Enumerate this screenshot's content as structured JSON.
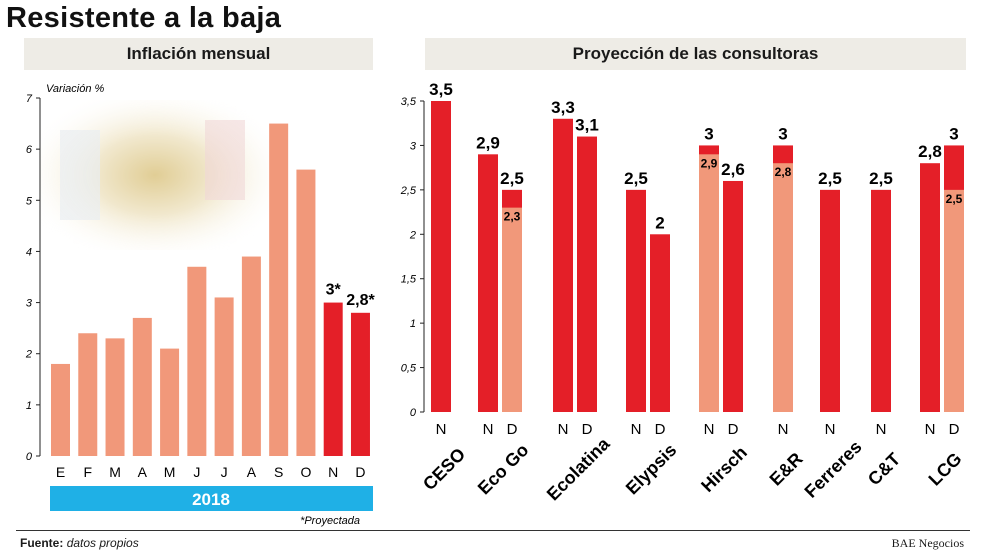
{
  "title": "Resistente a la baja",
  "source_label": "Fuente:",
  "source_text": "datos propios",
  "brand": "BAE Negocios",
  "colors": {
    "actual": "#f1987a",
    "projected": "#e41f28",
    "year_band": "#1fb0e6",
    "panel_head": "#eeece6"
  },
  "chart_data": [
    {
      "type": "bar",
      "title": "Inflación mensual",
      "ylabel": "Variación %",
      "ylim": [
        0,
        7
      ],
      "yticks": [
        "0",
        "1",
        "2",
        "3",
        "4",
        "5",
        "6",
        "7"
      ],
      "categories": [
        "E",
        "F",
        "M",
        "A",
        "M",
        "J",
        "J",
        "A",
        "S",
        "O",
        "N",
        "D"
      ],
      "values": [
        1.8,
        2.4,
        2.3,
        2.7,
        2.1,
        3.7,
        3.1,
        3.9,
        6.5,
        5.6,
        3.0,
        2.8
      ],
      "projected": [
        false,
        false,
        false,
        false,
        false,
        false,
        false,
        false,
        false,
        false,
        true,
        true
      ],
      "data_labels": [
        "",
        "",
        "",
        "",
        "",
        "",
        "",
        "",
        "",
        "",
        "3*",
        "2,8*"
      ],
      "year": "2018",
      "note": "*Proyectada",
      "grid": false
    },
    {
      "type": "bar",
      "title": "Proyección de las consultoras",
      "ylim": [
        0,
        3.5
      ],
      "yticks": [
        "0",
        "0,5",
        "1",
        "1,5",
        "2",
        "2,5",
        "3",
        "3,5"
      ],
      "groups": [
        {
          "name": "CESO",
          "bars": [
            {
              "key": "N",
              "value": 3.5,
              "label": "3,5"
            }
          ]
        },
        {
          "name": "Eco Go",
          "bars": [
            {
              "key": "N",
              "value": 2.9,
              "label": "2,9"
            },
            {
              "key": "D",
              "value": 2.5,
              "label": "2,5",
              "inner": 2.3,
              "inner_label": "2,3"
            }
          ]
        },
        {
          "name": "Ecolatina",
          "bars": [
            {
              "key": "N",
              "value": 3.3,
              "label": "3,3"
            },
            {
              "key": "D",
              "value": 3.1,
              "label": "3,1"
            }
          ]
        },
        {
          "name": "Elypsis",
          "bars": [
            {
              "key": "N",
              "value": 2.5,
              "label": "2,5"
            },
            {
              "key": "D",
              "value": 2.0,
              "label": "2"
            }
          ]
        },
        {
          "name": "Hirsch",
          "bars": [
            {
              "key": "N",
              "value": 3.0,
              "label": "3",
              "inner": 2.9,
              "inner_label": "2,9"
            },
            {
              "key": "D",
              "value": 2.6,
              "label": "2,6"
            }
          ]
        },
        {
          "name": "E&R",
          "bars": [
            {
              "key": "N",
              "value": 3.0,
              "label": "3",
              "inner": 2.8,
              "inner_label": "2,8"
            }
          ]
        },
        {
          "name": "Ferreres",
          "bars": [
            {
              "key": "N",
              "value": 2.5,
              "label": "2,5"
            }
          ]
        },
        {
          "name": "C&T",
          "bars": [
            {
              "key": "N",
              "value": 2.5,
              "label": "2,5"
            }
          ]
        },
        {
          "name": "LCG",
          "bars": [
            {
              "key": "N",
              "value": 2.8,
              "label": "2,8"
            },
            {
              "key": "D",
              "value": 3.0,
              "label": "3",
              "inner": 2.5,
              "inner_label": "2,5"
            }
          ]
        }
      ],
      "grid": false
    }
  ]
}
